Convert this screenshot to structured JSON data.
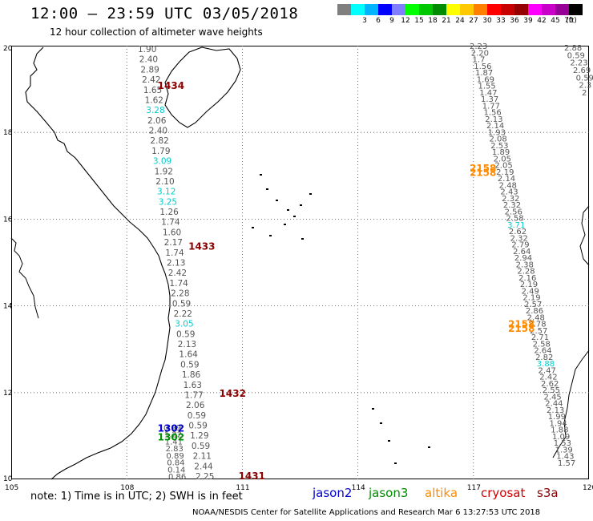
{
  "header": {
    "title": "12:00 – 23:59 UTC 03/05/2018",
    "subtitle": "12 hour collection of altimeter wave heights"
  },
  "legend": {
    "unit": "(ft)",
    "items": [
      {
        "label": "",
        "color": "#7f7f7f"
      },
      {
        "label": "3",
        "color": "#00ffff"
      },
      {
        "label": "6",
        "color": "#00b4ff"
      },
      {
        "label": "9",
        "color": "#0000ff"
      },
      {
        "label": "12",
        "color": "#7f7fff"
      },
      {
        "label": "15",
        "color": "#00ff00"
      },
      {
        "label": "18",
        "color": "#00c800"
      },
      {
        "label": "21",
        "color": "#008c00"
      },
      {
        "label": "24",
        "color": "#ffff00"
      },
      {
        "label": "27",
        "color": "#ffc800"
      },
      {
        "label": "30",
        "color": "#ff7f00"
      },
      {
        "label": "33",
        "color": "#ff0000"
      },
      {
        "label": "36",
        "color": "#c80000"
      },
      {
        "label": "39",
        "color": "#960000"
      },
      {
        "label": "42",
        "color": "#ff00ff"
      },
      {
        "label": "45",
        "color": "#c800c8"
      },
      {
        "label": "70",
        "color": "#960096"
      },
      {
        "label": "",
        "color": "#000000"
      }
    ]
  },
  "map": {
    "lat_ticks": [
      "20",
      "18",
      "16",
      "14",
      "12",
      "10"
    ],
    "lon_ticks": [
      "105",
      "108",
      "111",
      "114",
      "117",
      "120"
    ],
    "lat_range": [
      10,
      20
    ],
    "lon_range": [
      105,
      120
    ],
    "passes": [
      {
        "id": "1434",
        "color": "#8b0000",
        "lon": 108.8,
        "lat": 19.0
      },
      {
        "id": "1433",
        "color": "#8b0000",
        "lon": 109.6,
        "lat": 15.3
      },
      {
        "id": "1432",
        "color": "#8b0000",
        "lon": 110.4,
        "lat": 11.9
      },
      {
        "id": "1431",
        "color": "#8b0000",
        "lon": 110.9,
        "lat": 10.0
      },
      {
        "id": "1302",
        "color": "#0000cc",
        "lon": 108.8,
        "lat": 11.1
      },
      {
        "id": "1302",
        "color": "#008c00",
        "lon": 108.8,
        "lat": 10.9
      },
      {
        "id": "2158",
        "color": "#ff8c00",
        "lon": 116.9,
        "lat": 17.1
      },
      {
        "id": "2158",
        "color": "#ff8c00",
        "lon": 116.9,
        "lat": 17.0
      },
      {
        "id": "2158",
        "color": "#ff8c00",
        "lon": 117.9,
        "lat": 13.5
      },
      {
        "id": "2158",
        "color": "#ff8c00",
        "lon": 117.9,
        "lat": 13.4
      }
    ],
    "track_west": [
      {
        "v": "1.90",
        "c": "#555555"
      },
      {
        "v": "2.40",
        "c": "#555555"
      },
      {
        "v": "2.89",
        "c": "#555555"
      },
      {
        "v": "2.42",
        "c": "#555555"
      },
      {
        "v": "1.65",
        "c": "#555555"
      },
      {
        "v": "1.62",
        "c": "#555555"
      },
      {
        "v": "3.28",
        "c": "#00cccc"
      },
      {
        "v": "2.06",
        "c": "#555555"
      },
      {
        "v": "2.40",
        "c": "#555555"
      },
      {
        "v": "2.82",
        "c": "#555555"
      },
      {
        "v": "1.79",
        "c": "#555555"
      },
      {
        "v": "3.09",
        "c": "#00cccc"
      },
      {
        "v": "1.92",
        "c": "#555555"
      },
      {
        "v": "2.10",
        "c": "#555555"
      },
      {
        "v": "3.12",
        "c": "#00cccc"
      },
      {
        "v": "3.25",
        "c": "#00cccc"
      },
      {
        "v": "1.26",
        "c": "#555555"
      },
      {
        "v": "1.74",
        "c": "#555555"
      },
      {
        "v": "1.60",
        "c": "#555555"
      },
      {
        "v": "2.17",
        "c": "#555555"
      },
      {
        "v": "1.74",
        "c": "#555555"
      },
      {
        "v": "2.13",
        "c": "#555555"
      },
      {
        "v": "2.42",
        "c": "#555555"
      },
      {
        "v": "1.74",
        "c": "#555555"
      },
      {
        "v": "2.28",
        "c": "#555555"
      },
      {
        "v": "0.59",
        "c": "#555555"
      },
      {
        "v": "2.22",
        "c": "#555555"
      },
      {
        "v": "3.05",
        "c": "#00cccc"
      },
      {
        "v": "0.59",
        "c": "#555555"
      },
      {
        "v": "2.13",
        "c": "#555555"
      },
      {
        "v": "1.64",
        "c": "#555555"
      },
      {
        "v": "0.59",
        "c": "#555555"
      },
      {
        "v": "1.86",
        "c": "#555555"
      },
      {
        "v": "1.63",
        "c": "#555555"
      },
      {
        "v": "1.77",
        "c": "#555555"
      },
      {
        "v": "2.06",
        "c": "#555555"
      },
      {
        "v": "0.59",
        "c": "#555555"
      },
      {
        "v": "0.59",
        "c": "#555555"
      },
      {
        "v": "1.29",
        "c": "#555555"
      },
      {
        "v": "0.59",
        "c": "#555555"
      },
      {
        "v": "2.11",
        "c": "#555555"
      },
      {
        "v": "2.44",
        "c": "#555555"
      },
      {
        "v": "2.25",
        "c": "#555555"
      }
    ],
    "track_sw": [
      {
        "v": "0.99",
        "c": "#555555"
      },
      {
        "v": "1.22",
        "c": "#555555"
      },
      {
        "v": "1.41",
        "c": "#555555"
      },
      {
        "v": "2.83",
        "c": "#555555"
      },
      {
        "v": "0.89",
        "c": "#555555"
      },
      {
        "v": "0.84",
        "c": "#555555"
      },
      {
        "v": "0.14",
        "c": "#555555"
      },
      {
        "v": "0.86",
        "c": "#555555"
      }
    ],
    "track_east": [
      {
        "v": "2.23",
        "c": "#555555"
      },
      {
        "v": "2.20",
        "c": "#555555"
      },
      {
        "v": "1.7",
        "c": "#555555"
      },
      {
        "v": "1.56",
        "c": "#555555"
      },
      {
        "v": "1.87",
        "c": "#555555"
      },
      {
        "v": "1.69",
        "c": "#555555"
      },
      {
        "v": "1.55",
        "c": "#555555"
      },
      {
        "v": "1.47",
        "c": "#555555"
      },
      {
        "v": "1.37",
        "c": "#555555"
      },
      {
        "v": "1.77",
        "c": "#555555"
      },
      {
        "v": "1.56",
        "c": "#555555"
      },
      {
        "v": "2.13",
        "c": "#555555"
      },
      {
        "v": "2.14",
        "c": "#555555"
      },
      {
        "v": "1.93",
        "c": "#555555"
      },
      {
        "v": "2.08",
        "c": "#555555"
      },
      {
        "v": "2.53",
        "c": "#555555"
      },
      {
        "v": "1.89",
        "c": "#555555"
      },
      {
        "v": "2.05",
        "c": "#555555"
      },
      {
        "v": "2.05",
        "c": "#555555"
      },
      {
        "v": "2.19",
        "c": "#555555"
      },
      {
        "v": "2.14",
        "c": "#555555"
      },
      {
        "v": "2.48",
        "c": "#555555"
      },
      {
        "v": "2.43",
        "c": "#555555"
      },
      {
        "v": "2.32",
        "c": "#555555"
      },
      {
        "v": "2.32",
        "c": "#555555"
      },
      {
        "v": "2.56",
        "c": "#555555"
      },
      {
        "v": "2.58",
        "c": "#555555"
      },
      {
        "v": "3.71",
        "c": "#00cccc"
      },
      {
        "v": "2.62",
        "c": "#555555"
      },
      {
        "v": "2.32",
        "c": "#555555"
      },
      {
        "v": "2.79",
        "c": "#555555"
      },
      {
        "v": "2.64",
        "c": "#555555"
      },
      {
        "v": "2.94",
        "c": "#555555"
      },
      {
        "v": "2.38",
        "c": "#555555"
      },
      {
        "v": "2.28",
        "c": "#555555"
      },
      {
        "v": "2.16",
        "c": "#555555"
      },
      {
        "v": "2.19",
        "c": "#555555"
      },
      {
        "v": "2.49",
        "c": "#555555"
      },
      {
        "v": "2.19",
        "c": "#555555"
      },
      {
        "v": "2.57",
        "c": "#555555"
      },
      {
        "v": "2.86",
        "c": "#555555"
      },
      {
        "v": "2.48",
        "c": "#555555"
      },
      {
        "v": "2.78",
        "c": "#555555"
      },
      {
        "v": "2.57",
        "c": "#555555"
      },
      {
        "v": "2.71",
        "c": "#555555"
      },
      {
        "v": "2.58",
        "c": "#555555"
      },
      {
        "v": "2.64",
        "c": "#555555"
      },
      {
        "v": "2.82",
        "c": "#555555"
      },
      {
        "v": "3.88",
        "c": "#00cccc"
      },
      {
        "v": "2.47",
        "c": "#555555"
      },
      {
        "v": "2.42",
        "c": "#555555"
      },
      {
        "v": "2.62",
        "c": "#555555"
      },
      {
        "v": "2.55",
        "c": "#555555"
      },
      {
        "v": "2.45",
        "c": "#555555"
      },
      {
        "v": "2.44",
        "c": "#555555"
      },
      {
        "v": "2.13",
        "c": "#555555"
      },
      {
        "v": "1.99",
        "c": "#555555"
      },
      {
        "v": "1.94",
        "c": "#555555"
      },
      {
        "v": "1.88",
        "c": "#555555"
      },
      {
        "v": "1.09",
        "c": "#555555"
      },
      {
        "v": "1.53",
        "c": "#555555"
      },
      {
        "v": "1.39",
        "c": "#555555"
      },
      {
        "v": "1.43",
        "c": "#555555"
      },
      {
        "v": "1.57",
        "c": "#555555"
      }
    ],
    "track_far_east": [
      {
        "v": "2.88",
        "c": "#555555"
      },
      {
        "v": "0.59",
        "c": "#555555"
      },
      {
        "v": "2.23",
        "c": "#555555"
      },
      {
        "v": "2.69",
        "c": "#555555"
      },
      {
        "v": "0.59",
        "c": "#555555"
      },
      {
        "v": "2.3",
        "c": "#555555"
      },
      {
        "v": "2",
        "c": "#555555"
      }
    ]
  },
  "footer": {
    "note": "note: 1) Time is in UTC; 2) SWH is in feet",
    "satellites": [
      {
        "name": "jason2",
        "color": "#0000cc"
      },
      {
        "name": "jason3",
        "color": "#008c00"
      },
      {
        "name": "altika",
        "color": "#ff8c00"
      },
      {
        "name": "cryosat",
        "color": "#cc0000"
      },
      {
        "name": "s3a",
        "color": "#8b0000"
      }
    ],
    "credit": "NOAA/NESDIS Center for Satellite Applications and Research   Mar  6 13:27:53 UTC 2018"
  }
}
